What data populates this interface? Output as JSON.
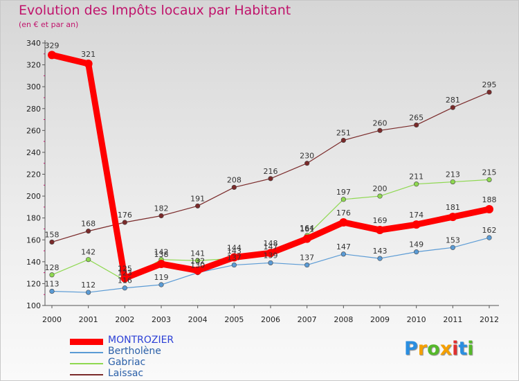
{
  "header": {
    "title": "Evolution des Impôts locaux par Habitant",
    "subtitle": "(en € et par an)"
  },
  "logo": {
    "letters": [
      "P",
      "r",
      "o",
      "x",
      "i",
      "t",
      "i"
    ],
    "colors": [
      "#2a8ee0",
      "#f5a000",
      "#55b82a",
      "#f5a000",
      "#e03030",
      "#2a8ee0",
      "#55b82a"
    ]
  },
  "chart_data": {
    "type": "line",
    "title": "Evolution des Impôts locaux par Habitant",
    "subtitle": "(en € et par an)",
    "xlabel": "",
    "ylabel": "",
    "x": [
      "2000",
      "2001",
      "2002",
      "2003",
      "2004",
      "2005",
      "2006",
      "2007",
      "2008",
      "2009",
      "2010",
      "2011",
      "2012"
    ],
    "ylim": [
      100,
      340
    ],
    "yticks": [
      100,
      120,
      140,
      160,
      180,
      200,
      220,
      240,
      260,
      280,
      300,
      320,
      340
    ],
    "grid": false,
    "legend_position": "bottom-left",
    "series": [
      {
        "name": "MONTROZIER",
        "color": "#ff0000",
        "values": [
          329,
          321,
          125,
          138,
          132,
          144,
          148,
          161,
          176,
          169,
          174,
          181,
          188
        ],
        "labels": [
          "329",
          "321",
          "125",
          "138",
          "132",
          "144",
          "148",
          "161",
          "176",
          "169",
          "174",
          "181",
          "188"
        ]
      },
      {
        "name": "Bertholène",
        "color": "#5b9bd5",
        "values": [
          113,
          112,
          116,
          119,
          130,
          137,
          139,
          137,
          147,
          143,
          149,
          153,
          162
        ],
        "labels": [
          "113",
          "112",
          "116",
          "119",
          "130",
          "137",
          "139",
          "137",
          "147",
          "143",
          "149",
          "153",
          "162"
        ]
      },
      {
        "name": "Gabriac",
        "color": "#8ed850",
        "values": [
          128,
          142,
          123,
          142,
          141,
          143,
          147,
          164,
          197,
          200,
          211,
          213,
          215
        ],
        "labels": [
          "128",
          "142",
          "123",
          "142",
          "141",
          "143",
          "147",
          "164",
          "197",
          "200",
          "211",
          "213",
          "215"
        ]
      },
      {
        "name": "Laissac",
        "color": "#7a2a2a",
        "values": [
          158,
          168,
          176,
          182,
          191,
          208,
          216,
          230,
          251,
          260,
          265,
          281,
          295
        ],
        "labels": [
          "158",
          "168",
          "176",
          "182",
          "191",
          "208",
          "216",
          "230",
          "251",
          "260",
          "265",
          "281",
          "295"
        ]
      }
    ]
  }
}
